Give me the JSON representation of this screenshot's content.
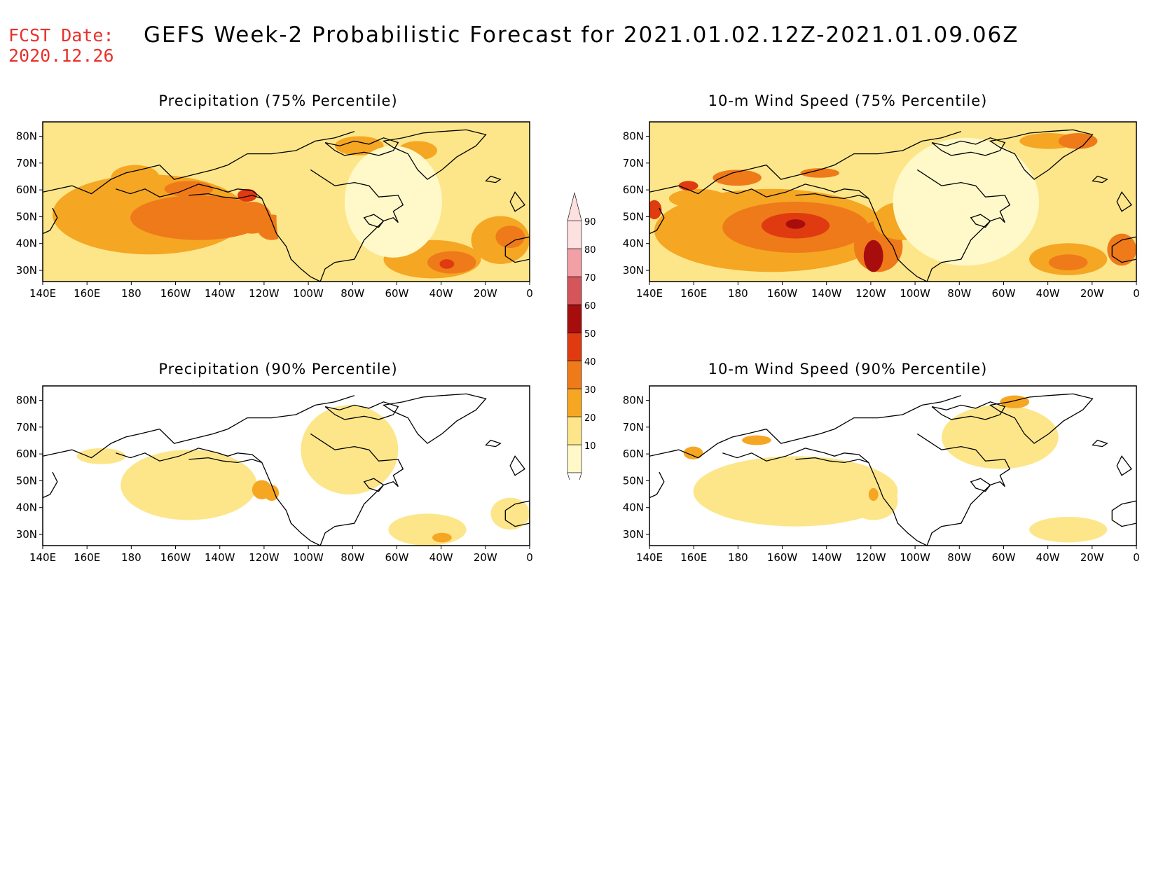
{
  "header": {
    "fcst_label": "FCST Date:",
    "fcst_date": "2020.12.26",
    "title": "GEFS Week-2 Probabilistic Forecast for 2021.01.02.12Z-2021.01.09.06Z",
    "fcst_color": "#e8302a"
  },
  "panels": [
    {
      "title": "Precipitation (75% Percentile)",
      "variable": "precipitation",
      "percentile": 75
    },
    {
      "title": "10-m Wind Speed (75% Percentile)",
      "variable": "wind",
      "percentile": 75
    },
    {
      "title": "Precipitation (90% Percentile)",
      "variable": "precipitation",
      "percentile": 90
    },
    {
      "title": "10-m Wind Speed (90% Percentile)",
      "variable": "wind",
      "percentile": 90
    }
  ],
  "axes": {
    "lat_labels": [
      "80N",
      "70N",
      "60N",
      "50N",
      "40N",
      "30N"
    ],
    "lon_labels": [
      "140E",
      "160E",
      "180",
      "160W",
      "140W",
      "120W",
      "100W",
      "80W",
      "60W",
      "40W",
      "20W",
      "0"
    ],
    "lat_range": [
      25,
      85
    ],
    "lon_range_label": "140E to 0"
  },
  "colorbar": {
    "labels": [
      "10",
      "20",
      "30",
      "40",
      "50",
      "60",
      "70",
      "80",
      "90"
    ],
    "colors": [
      "#fff9c9",
      "#fde68a",
      "#f5a623",
      "#ef7a1a",
      "#e03a10",
      "#a80d0d",
      "#d4555a",
      "#f2a0a6",
      "#fde0e0"
    ]
  }
}
